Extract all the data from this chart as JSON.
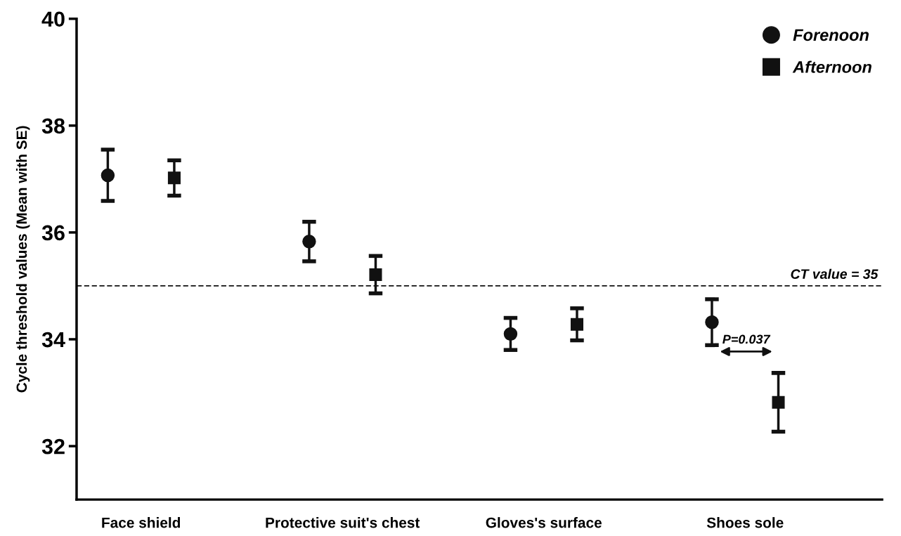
{
  "chart_data": {
    "type": "scatter",
    "ylabel": "Cycle threshold values (Mean with SE)",
    "categories": [
      "Face shield",
      "Protective suit's chest",
      "Gloves's surface",
      "Shoes sole"
    ],
    "series": [
      {
        "name": "Forenoon",
        "color": "#111111",
        "marker": "circle",
        "values": [
          37.07,
          35.83,
          34.1,
          34.32
        ],
        "errors": [
          0.48,
          0.37,
          0.3,
          0.43
        ]
      },
      {
        "name": "Afternoon",
        "color": "#111111",
        "marker": "square",
        "values": [
          37.02,
          35.21,
          34.28,
          32.82
        ],
        "errors": [
          0.33,
          0.35,
          0.3,
          0.55
        ]
      }
    ],
    "ylim": [
      31,
      40
    ],
    "yticks": [
      32,
      34,
      36,
      38,
      40
    ],
    "ref_lines": [
      {
        "axis": "y",
        "value": 35,
        "label": "CT value = 35",
        "line_style": "dashed",
        "color": "#111111"
      }
    ],
    "annotations": [
      "P=0.037"
    ],
    "legend": "top right",
    "grid": false
  }
}
